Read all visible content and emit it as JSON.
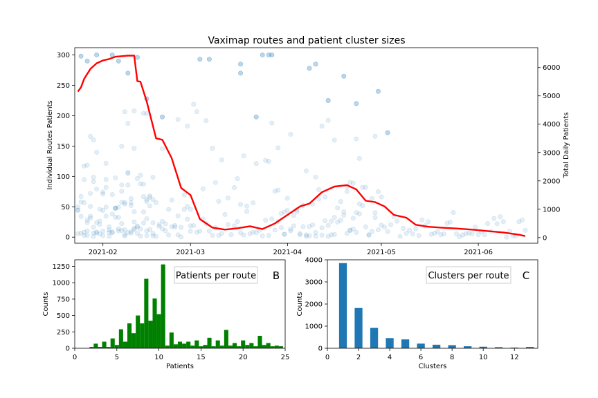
{
  "chart_data": [
    {
      "type": "scatter",
      "title": "Vaximap routes and patient cluster sizes",
      "xlabel": "",
      "ylabel": "Individual Routes Patients",
      "y2label": "Total Daily Patients",
      "xlim": [
        "2021-01-23",
        "2021-06-20"
      ],
      "ylim": [
        -10,
        312
      ],
      "y2lim": [
        -200,
        6700
      ],
      "x_ticks": [
        "2021-02-01",
        "2021-03-01",
        "2021-04-01",
        "2021-05-01",
        "2021-06-01"
      ],
      "x_tick_labels": [
        "2021-02",
        "2021-03",
        "2021-04",
        "2021-05",
        "2021-06"
      ],
      "y_ticks": [
        0,
        50,
        100,
        150,
        200,
        250,
        300
      ],
      "y2_ticks": [
        0,
        1000,
        2000,
        3000,
        4000,
        5000,
        6000
      ],
      "scatter_color": "#1f77b4",
      "scatter_alpha": 0.12,
      "line_color": "#ff0000",
      "scatter_density": [
        {
          "start": "2021-01-24",
          "end": "2021-02-17",
          "count": 4,
          "spread": 110,
          "outliers": 2
        },
        {
          "start": "2021-02-18",
          "end": "2021-03-01",
          "count": 2,
          "spread": 70,
          "outliers": 1
        },
        {
          "start": "2021-03-02",
          "end": "2021-03-27",
          "count": 1,
          "spread": 45,
          "outliers": 1
        },
        {
          "start": "2021-03-28",
          "end": "2021-05-01",
          "count": 2,
          "spread": 80,
          "outliers": 1
        },
        {
          "start": "2021-05-02",
          "end": "2021-06-16",
          "count": 1,
          "spread": 40,
          "outliers": 0
        }
      ],
      "scatter_outliers": [
        {
          "x": "2021-01-25",
          "y": 298
        },
        {
          "x": "2021-01-27",
          "y": 290
        },
        {
          "x": "2021-01-30",
          "y": 300
        },
        {
          "x": "2021-02-04",
          "y": 300
        },
        {
          "x": "2021-02-06",
          "y": 290
        },
        {
          "x": "2021-02-09",
          "y": 270
        },
        {
          "x": "2021-02-12",
          "y": 296
        },
        {
          "x": "2021-02-15",
          "y": 228
        },
        {
          "x": "2021-02-20",
          "y": 198
        },
        {
          "x": "2021-03-04",
          "y": 293
        },
        {
          "x": "2021-03-07",
          "y": 293
        },
        {
          "x": "2021-03-17",
          "y": 285
        },
        {
          "x": "2021-03-17",
          "y": 270
        },
        {
          "x": "2021-03-24",
          "y": 300
        },
        {
          "x": "2021-03-26",
          "y": 300
        },
        {
          "x": "2021-03-27",
          "y": 300
        },
        {
          "x": "2021-04-08",
          "y": 278
        },
        {
          "x": "2021-04-10",
          "y": 285
        },
        {
          "x": "2021-04-19",
          "y": 265
        },
        {
          "x": "2021-04-14",
          "y": 225
        },
        {
          "x": "2021-04-23",
          "y": 220
        },
        {
          "x": "2021-04-30",
          "y": 240
        },
        {
          "x": "2021-05-03",
          "y": 172
        },
        {
          "x": "2021-03-22",
          "y": 198
        }
      ],
      "daily_total_line": {
        "x": [
          "2021-01-24",
          "2021-01-25",
          "2021-01-26",
          "2021-01-28",
          "2021-01-30",
          "2021-02-01",
          "2021-02-03",
          "2021-02-05",
          "2021-02-07",
          "2021-02-09",
          "2021-02-11",
          "2021-02-12",
          "2021-02-13",
          "2021-02-15",
          "2021-02-18",
          "2021-02-20",
          "2021-02-23",
          "2021-02-26",
          "2021-03-01",
          "2021-03-04",
          "2021-03-08",
          "2021-03-12",
          "2021-03-16",
          "2021-03-20",
          "2021-03-24",
          "2021-03-28",
          "2021-04-01",
          "2021-04-05",
          "2021-04-08",
          "2021-04-12",
          "2021-04-16",
          "2021-04-20",
          "2021-04-23",
          "2021-04-26",
          "2021-04-29",
          "2021-05-02",
          "2021-05-05",
          "2021-05-09",
          "2021-05-12",
          "2021-05-16",
          "2021-05-20",
          "2021-05-25",
          "2021-05-30",
          "2021-06-04",
          "2021-06-09",
          "2021-06-14",
          "2021-06-16"
        ],
        "y": [
          5150,
          5300,
          5600,
          5950,
          6150,
          6250,
          6300,
          6380,
          6400,
          6420,
          6420,
          5520,
          5500,
          4800,
          3500,
          3450,
          2800,
          1750,
          1500,
          650,
          350,
          280,
          330,
          400,
          300,
          500,
          800,
          1100,
          1200,
          1600,
          1800,
          1850,
          1700,
          1300,
          1250,
          1100,
          800,
          700,
          450,
          380,
          350,
          320,
          280,
          230,
          180,
          100,
          50
        ]
      }
    },
    {
      "type": "bar",
      "title": "",
      "annotation": "Patients per route",
      "panel_label": "B",
      "xlabel": "Patients",
      "ylabel": "Counts",
      "xlim": [
        0,
        25
      ],
      "ylim": [
        0,
        1350
      ],
      "x_ticks": [
        0,
        5,
        10,
        15,
        20,
        25
      ],
      "y_ticks": [
        0,
        250,
        500,
        750,
        1000,
        1250
      ],
      "color": "#008000",
      "bin_width": 0.5,
      "x": [
        2,
        2.5,
        3,
        3.5,
        4,
        4.5,
        5,
        5.5,
        6,
        6.5,
        7,
        7.5,
        8,
        8.5,
        9,
        9.5,
        10,
        10.5,
        11,
        11.5,
        12,
        12.5,
        13,
        13.5,
        14,
        14.5,
        15,
        15.5,
        16,
        16.5,
        17,
        17.5,
        18,
        18.5,
        19,
        19.5,
        20,
        20.5,
        21,
        21.5,
        22,
        22.5,
        23,
        23.5,
        24,
        24.5
      ],
      "values": [
        20,
        70,
        20,
        100,
        20,
        150,
        50,
        290,
        100,
        380,
        230,
        500,
        380,
        1060,
        420,
        760,
        520,
        1280,
        40,
        240,
        60,
        100,
        70,
        100,
        40,
        120,
        30,
        50,
        160,
        30,
        120,
        40,
        280,
        40,
        80,
        30,
        120,
        50,
        80,
        30,
        190,
        50,
        80,
        30,
        40,
        30
      ]
    },
    {
      "type": "bar",
      "title": "",
      "annotation": "Clusters per route",
      "panel_label": "C",
      "xlabel": "Clusters",
      "ylabel": "Counts",
      "xlim": [
        0,
        13.5
      ],
      "ylim": [
        0,
        4000
      ],
      "x_ticks": [
        0,
        2,
        4,
        6,
        8,
        10,
        12
      ],
      "y_ticks": [
        0,
        1000,
        2000,
        3000,
        4000
      ],
      "color": "#1f77b4",
      "bin_width": 0.5,
      "x": [
        1,
        2,
        3,
        4,
        5,
        6,
        7,
        8,
        9,
        10,
        11,
        12,
        13
      ],
      "values": [
        3850,
        1820,
        920,
        460,
        400,
        210,
        160,
        140,
        90,
        70,
        50,
        30,
        60
      ]
    }
  ]
}
